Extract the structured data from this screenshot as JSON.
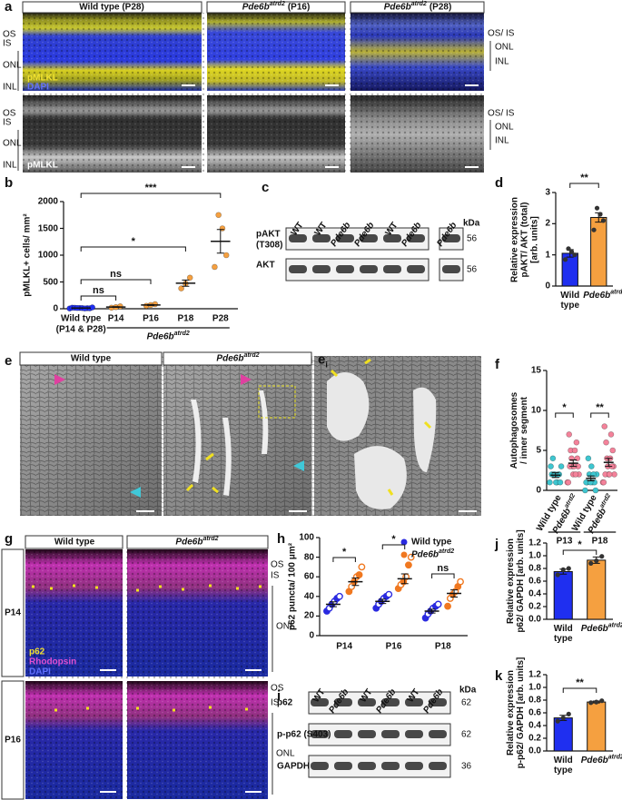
{
  "figure": {
    "panel_letters": [
      "a",
      "b",
      "c",
      "d",
      "e",
      "f",
      "g",
      "h",
      "i",
      "j",
      "k"
    ],
    "gene": "Pde6b",
    "allele": "atrd2",
    "a": {
      "wild_type": "Wild type (P28)",
      "mutant_ages": [
        "(P16)",
        "(P28)"
      ],
      "layers": [
        "OS",
        "IS",
        "ONL",
        "INL"
      ],
      "stains": [
        "pMLKL",
        "DAPI"
      ],
      "mutant_layers": [
        "OS/ IS",
        "ONL",
        "INL"
      ]
    },
    "c": {
      "lanes": [
        "WT",
        "WT",
        "Pde6b",
        "Pde6b",
        "WT",
        "Pde6b",
        "Pde6b"
      ],
      "rows": [
        [
          "pAKT",
          "(T308)"
        ],
        [
          "AKT"
        ]
      ],
      "unit": "kDa",
      "sizes": [
        "56",
        "56"
      ]
    },
    "e": {
      "wild_type": "Wild type",
      "inset_letter": "e",
      "inset_sub": "i"
    },
    "g": {
      "wild_type": "Wild type",
      "ages": [
        "P14",
        "P16"
      ],
      "stains": [
        "p62",
        "Rhodopsin",
        "DAPI"
      ],
      "layers": [
        "OS",
        "IS",
        "ONL"
      ]
    },
    "i": {
      "lanes": [
        "WT",
        "Pde6b",
        "WT",
        "Pde6b",
        "WT",
        "Pde6b"
      ],
      "rows": [
        "p62",
        "p-p62 (S403)",
        "GAPDH"
      ],
      "unit": "kDa",
      "sizes": [
        "62",
        "62",
        "36"
      ]
    }
  },
  "chart_data": [
    {
      "type": "dot",
      "ylabel": "pMLKL+ cells/ mm²",
      "categories": [
        "Wild type",
        "P14",
        "P16",
        "P18",
        "P28"
      ],
      "category_note": "(P14 & P28)",
      "group_label": {
        "name": "Pde6b",
        "name_sup": "atrd2"
      },
      "ylim": [
        0,
        2000
      ],
      "yticks": [
        0,
        500,
        1000,
        1500,
        2000
      ],
      "groups": [
        {
          "color": "#1f2ff0",
          "points": [
            5,
            10,
            15,
            20,
            8,
            12,
            18,
            25,
            6,
            14
          ],
          "mean": 13,
          "sem": 2
        },
        {
          "color": "#f5a040",
          "points": [
            20,
            30,
            45
          ],
          "mean": 32,
          "sem": 7
        },
        {
          "color": "#f5a040",
          "points": [
            55,
            70,
            85
          ],
          "mean": 70,
          "sem": 9
        },
        {
          "color": "#f5a040",
          "points": [
            380,
            470,
            580
          ],
          "mean": 477,
          "sem": 58
        },
        {
          "color": "#f5a040",
          "points": [
            780,
            1000,
            1500,
            1750
          ],
          "mean": 1258,
          "sem": 220
        }
      ],
      "annotations": [
        "ns",
        "ns",
        "*",
        "***"
      ]
    },
    {
      "type": "bar",
      "ylabel": [
        "Relative expression",
        "pAKT/ AKT (total)",
        "[arb. units]"
      ],
      "ylim": [
        0,
        3
      ],
      "yticks": [
        0,
        1,
        2,
        3
      ],
      "series": [
        {
          "name": "Wild type",
          "color": "#1f2ff0",
          "value": 1.05,
          "error": 0.12,
          "points": [
            0.85,
            1.0,
            1.1,
            1.2
          ]
        },
        {
          "name": "Pde6b",
          "name_sup": "atrd2",
          "color": "#f5a040",
          "value": 2.2,
          "error": 0.15,
          "points": [
            1.8,
            2.1,
            2.3,
            2.5
          ]
        }
      ],
      "annotations": [
        "**"
      ]
    },
    {
      "type": "dot",
      "ylabel": [
        "Autophagosomes",
        "/ inner segment"
      ],
      "ylim": [
        0,
        15
      ],
      "yticks": [
        0,
        5,
        10,
        15
      ],
      "groups": [
        {
          "name": "Wild type",
          "color": "#3ec6d0",
          "points": [
            1,
            1,
            2,
            2,
            2,
            3,
            1,
            3,
            2,
            4,
            1,
            2
          ],
          "mean": 1.9,
          "sem": 0.3
        },
        {
          "name": "Pde6b",
          "name_sup": "atrd2",
          "color": "#f4829a",
          "points": [
            1,
            2,
            2,
            3,
            3,
            4,
            4,
            5,
            6,
            3,
            2,
            7,
            5,
            1,
            3
          ],
          "mean": 3.4,
          "sem": 0.4
        },
        {
          "name": "Wild type",
          "color": "#3ec6d0",
          "points": [
            0,
            1,
            1,
            1,
            2,
            2,
            3,
            1,
            2,
            4,
            0,
            1
          ],
          "mean": 1.5,
          "sem": 0.3
        },
        {
          "name": "Pde6b",
          "name_sup": "atrd2",
          "color": "#f4829a",
          "points": [
            1,
            2,
            2,
            3,
            3,
            4,
            5,
            6,
            3,
            2,
            7,
            8,
            4,
            1,
            2
          ],
          "mean": 3.5,
          "sem": 0.5
        }
      ],
      "timepoints": [
        "P13",
        "P18"
      ],
      "annotations": [
        "*",
        "**"
      ]
    },
    {
      "type": "grouped_dot",
      "ylabel": "p62 puncta/ 100 μm²",
      "ylim": [
        0,
        100
      ],
      "yticks": [
        0,
        20,
        40,
        60,
        80,
        100
      ],
      "categories": [
        "P14",
        "P16",
        "P18"
      ],
      "series": [
        {
          "name": "Wild type",
          "color": "#2a2ae0",
          "points": [
            [
              25,
              28,
              32,
              35,
              38,
              40
            ],
            [
              28,
              32,
              35,
              38,
              40,
              42
            ],
            [
              18,
              22,
              25,
              28,
              30,
              32
            ]
          ],
          "mean": [
            32,
            35,
            25
          ],
          "sem": [
            2.5,
            2.2,
            2
          ]
        },
        {
          "name": "Pde6b",
          "name_sup": "atrd2",
          "color": "#f07820",
          "points": [
            [
              45,
              50,
              55,
              60,
              62,
              70
            ],
            [
              48,
              52,
              55,
              60,
              72,
              80
            ],
            [
              30,
              38,
              42,
              45,
              50,
              55
            ]
          ],
          "mean": [
            55,
            58,
            43
          ],
          "sem": [
            3.8,
            5,
            3.6
          ]
        }
      ],
      "annotations": [
        "*",
        "*",
        "ns"
      ]
    },
    {
      "type": "bar",
      "ylabel": [
        "Relative expression",
        "p62/ GAPDH [arb. units]"
      ],
      "ylim": [
        0,
        1.2
      ],
      "yticks": [
        {
          "value": 0,
          "label": "0.0"
        },
        0.2,
        0.4,
        0.6,
        0.8,
        {
          "value": 1,
          "label": "1.0"
        },
        1.2
      ],
      "series": [
        {
          "name": "Wild type",
          "color": "#1f2ff0",
          "value": 0.75,
          "error": 0.04,
          "points": [
            0.7,
            0.78,
            0.8
          ]
        },
        {
          "name": "Pde6b",
          "name_sup": "atrd2",
          "color": "#f5a040",
          "value": 0.93,
          "error": 0.05,
          "points": [
            0.88,
            0.92,
            0.99
          ]
        }
      ],
      "annotations": [
        "*"
      ]
    },
    {
      "type": "bar",
      "ylabel": [
        "Relative expression",
        "p-p62/ GAPDH [arb. units]"
      ],
      "ylim": [
        0,
        1.2
      ],
      "yticks": [
        {
          "value": 0,
          "label": "0.0"
        },
        0.2,
        0.4,
        0.6,
        0.8,
        {
          "value": 1,
          "label": "1.0"
        },
        1.2
      ],
      "series": [
        {
          "name": "Wild type",
          "color": "#1f2ff0",
          "value": 0.52,
          "error": 0.04,
          "points": [
            0.47,
            0.52,
            0.58
          ]
        },
        {
          "name": "Pde6b",
          "name_sup": "atrd2",
          "color": "#f5a040",
          "value": 0.77,
          "error": 0.015,
          "points": [
            0.76,
            0.77,
            0.79
          ]
        }
      ],
      "annotations": [
        "**"
      ]
    }
  ]
}
